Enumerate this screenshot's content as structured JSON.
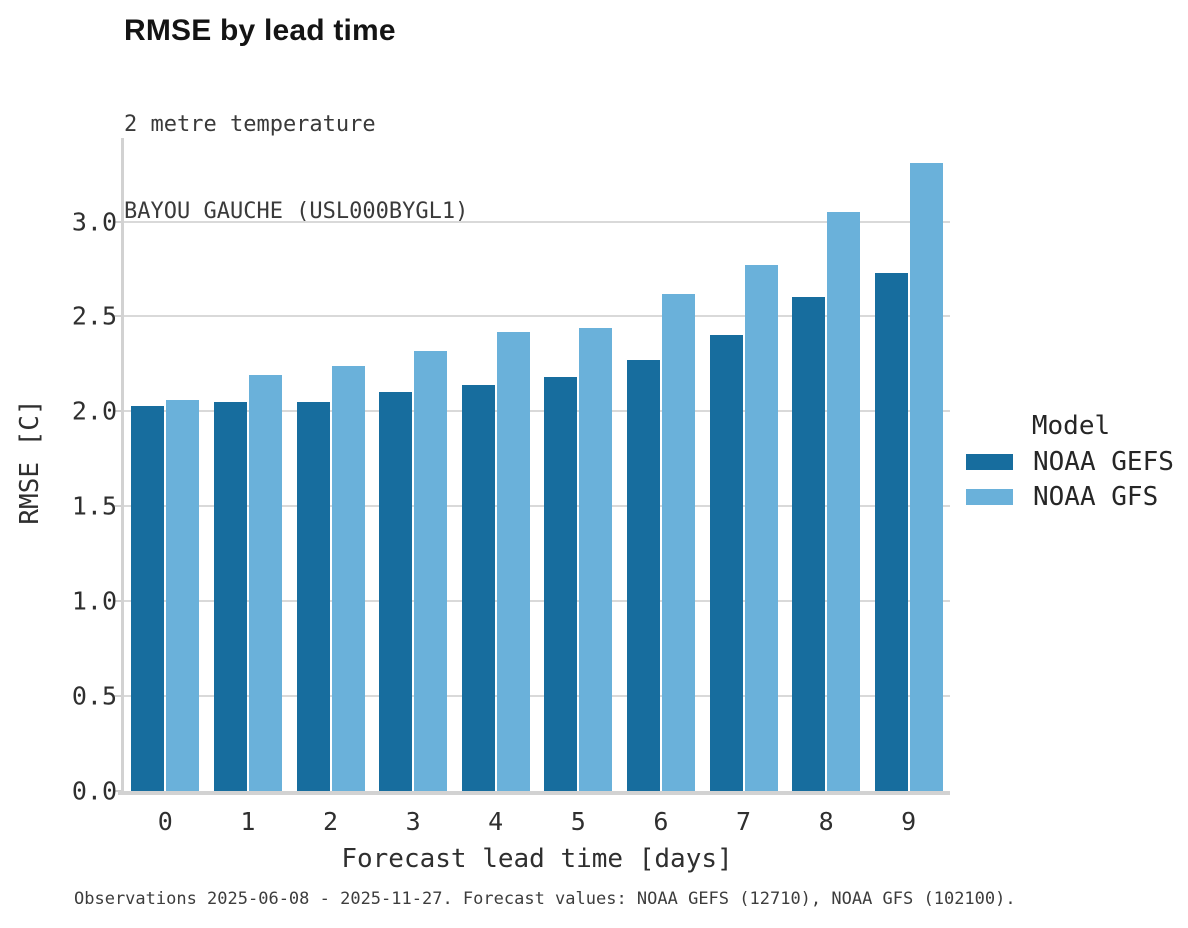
{
  "header": {
    "title": "RMSE by lead time",
    "subtitle_line1": "2 metre temperature",
    "subtitle_line2": "BAYOU GAUCHE (USL000BYGL1)"
  },
  "footer": {
    "text": "Observations 2025-06-08 - 2025-11-27. Forecast values: NOAA GEFS (12710), NOAA GFS (102100)."
  },
  "legend": {
    "title": "Model",
    "position": "right"
  },
  "colors": {
    "series_dark_blue": "#176d9e",
    "series_light_blue": "#6ab1da",
    "gridline": "#d9d9d9",
    "spine": "#d2d2d2",
    "tick_text": "#2f2f2f",
    "title_text": "#141414"
  },
  "chart_data": {
    "type": "bar",
    "title": "RMSE by lead time",
    "subtitle": [
      "2 metre temperature",
      "BAYOU GAUCHE (USL000BYGL1)"
    ],
    "categories": [
      "0",
      "1",
      "2",
      "3",
      "4",
      "5",
      "6",
      "7",
      "8",
      "9"
    ],
    "series": [
      {
        "name": "NOAA GEFS",
        "color": "#176d9e",
        "values": [
          2.03,
          2.05,
          2.05,
          2.1,
          2.14,
          2.18,
          2.27,
          2.4,
          2.6,
          2.73
        ]
      },
      {
        "name": "NOAA GFS",
        "color": "#6ab1da",
        "values": [
          2.06,
          2.19,
          2.24,
          2.32,
          2.42,
          2.44,
          2.62,
          2.77,
          3.05,
          3.31
        ]
      }
    ],
    "xlabel": "Forecast lead time [days]",
    "ylabel": "RMSE [C]",
    "ylim": [
      0,
      3.44
    ],
    "yticks": [
      0.0,
      0.5,
      1.0,
      1.5,
      2.0,
      2.5,
      3.0
    ],
    "ytick_labels": [
      "0.0",
      "0.5",
      "1.0",
      "1.5",
      "2.0",
      "2.5",
      "3.0"
    ],
    "grid": true,
    "legend_title": "Model",
    "legend_position": "right",
    "footnote": "Observations 2025-06-08 - 2025-11-27. Forecast values: NOAA GEFS (12710), NOAA GFS (102100)."
  }
}
